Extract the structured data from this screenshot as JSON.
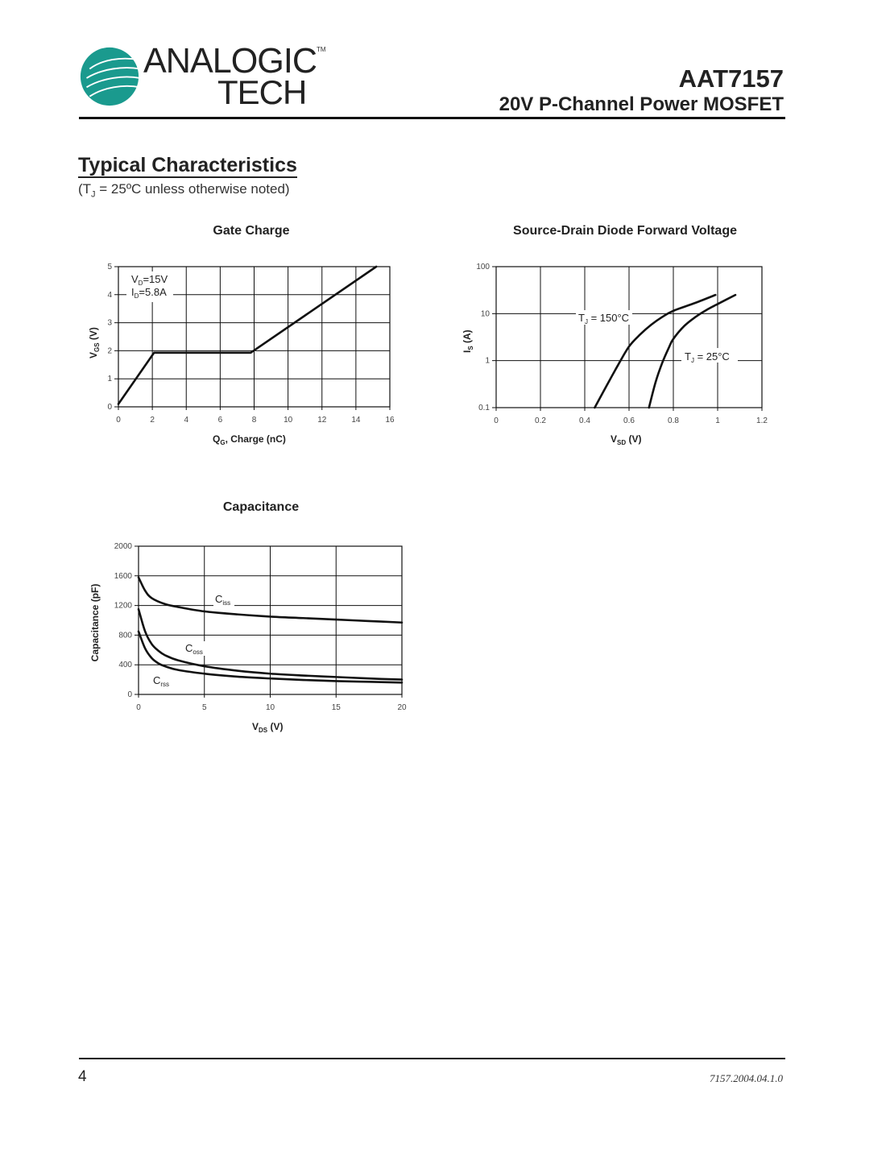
{
  "header": {
    "brand_line1": "ANALOGIC",
    "brand_line2": "TECH",
    "trademark": "TM",
    "part_number": "AAT7157",
    "subtitle": "20V P-Channel Power MOSFET",
    "logo_color": "#1a9a8e"
  },
  "section": {
    "title": "Typical Characteristics",
    "condition_prefix": "(T",
    "condition_sub": "J",
    "condition_suffix": " = 25ºC unless otherwise noted)"
  },
  "footer": {
    "page_number": "4",
    "doc_code": "7157.2004.04.1.0"
  },
  "chart_data": [
    {
      "id": "gate-charge",
      "type": "line",
      "title": "Gate Charge",
      "xlabel": "QG, Charge (nC)",
      "ylabel": "VGS (V)",
      "xlim": [
        0,
        16
      ],
      "ylim": [
        0,
        5
      ],
      "xticks": [
        "0",
        "2",
        "4",
        "6",
        "8",
        "10",
        "12",
        "14",
        "16"
      ],
      "yticks": [
        "0",
        "1",
        "2",
        "3",
        "4",
        "5"
      ],
      "grid": true,
      "annotations": [
        "VD=15V",
        "ID=5.8A"
      ],
      "series": [
        {
          "name": "VGS",
          "x": [
            0.0,
            2.1,
            7.8,
            15.2
          ],
          "y": [
            0.1,
            1.93,
            1.93,
            5.0
          ]
        }
      ]
    },
    {
      "id": "source-drain-diode",
      "type": "line",
      "title": "Source-Drain Diode Forward Voltage",
      "xlabel": "VSD (V)",
      "ylabel": "IS (A)",
      "xlim": [
        0,
        1.2
      ],
      "ylim": [
        0.1,
        100
      ],
      "yscale": "log",
      "xticks": [
        "0",
        "0.2",
        "0.4",
        "0.6",
        "0.8",
        "1",
        "1.2"
      ],
      "yticks": [
        "0.1",
        "1",
        "10",
        "100"
      ],
      "grid": true,
      "series": [
        {
          "name": "TJ = 150°C",
          "x": [
            0.445,
            0.5,
            0.55,
            0.6,
            0.65,
            0.7,
            0.75,
            0.8,
            0.9,
            0.99
          ],
          "y": [
            0.1,
            0.3,
            0.8,
            2.0,
            3.6,
            5.8,
            8.5,
            11.5,
            17,
            25
          ]
        },
        {
          "name": "TJ = 25°C",
          "x": [
            0.69,
            0.72,
            0.75,
            0.78,
            0.8,
            0.85,
            0.9,
            0.95,
            1.0,
            1.08
          ],
          "y": [
            0.1,
            0.35,
            0.9,
            1.9,
            2.9,
            5.5,
            8.5,
            12,
            16,
            25
          ]
        }
      ]
    },
    {
      "id": "capacitance",
      "type": "line",
      "title": "Capacitance",
      "xlabel": "VDS (V)",
      "ylabel": "Capacitance (pF)",
      "xlim": [
        0,
        20
      ],
      "ylim": [
        0,
        2000
      ],
      "xticks": [
        "0",
        "5",
        "10",
        "15",
        "20"
      ],
      "yticks": [
        "0",
        "400",
        "800",
        "1200",
        "1600",
        "2000"
      ],
      "grid": true,
      "series": [
        {
          "name": "Ciss",
          "x": [
            0,
            0.5,
            1,
            2,
            3,
            5,
            7.5,
            10,
            12.5,
            15,
            17.5,
            20
          ],
          "y": [
            1580,
            1400,
            1300,
            1220,
            1180,
            1120,
            1080,
            1050,
            1030,
            1010,
            990,
            970
          ]
        },
        {
          "name": "Coss",
          "x": [
            0,
            0.5,
            1,
            1.5,
            2,
            3,
            5,
            7.5,
            10,
            12.5,
            15,
            17.5,
            20
          ],
          "y": [
            1150,
            850,
            680,
            590,
            530,
            460,
            380,
            320,
            280,
            255,
            235,
            215,
            200
          ]
        },
        {
          "name": "Crss",
          "x": [
            0,
            0.5,
            1,
            1.5,
            2,
            3,
            5,
            7.5,
            10,
            12.5,
            15,
            17.5,
            20
          ],
          "y": [
            850,
            620,
            490,
            420,
            380,
            330,
            280,
            240,
            215,
            195,
            180,
            170,
            160
          ]
        }
      ]
    }
  ]
}
